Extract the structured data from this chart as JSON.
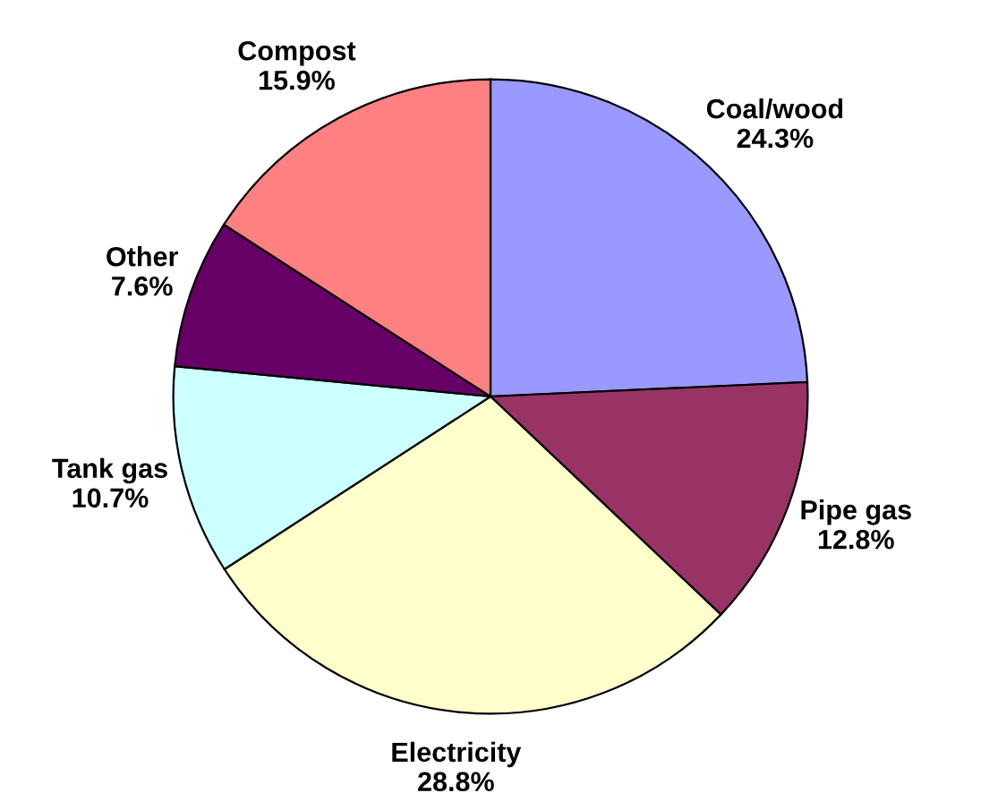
{
  "chart_data": {
    "type": "pie",
    "categories": [
      "Coal/wood",
      "Pipe gas",
      "Electricity",
      "Tank gas",
      "Other",
      "Compost"
    ],
    "values": [
      24.3,
      12.8,
      28.8,
      10.7,
      7.6,
      15.9
    ],
    "value_labels": [
      "24.3%",
      "12.8%",
      "28.8%",
      "10.7%",
      "7.6%",
      "15.9%"
    ],
    "colors": [
      "#9999ff",
      "#993366",
      "#ffffcc",
      "#ccffff",
      "#660066",
      "#ff8080"
    ]
  }
}
